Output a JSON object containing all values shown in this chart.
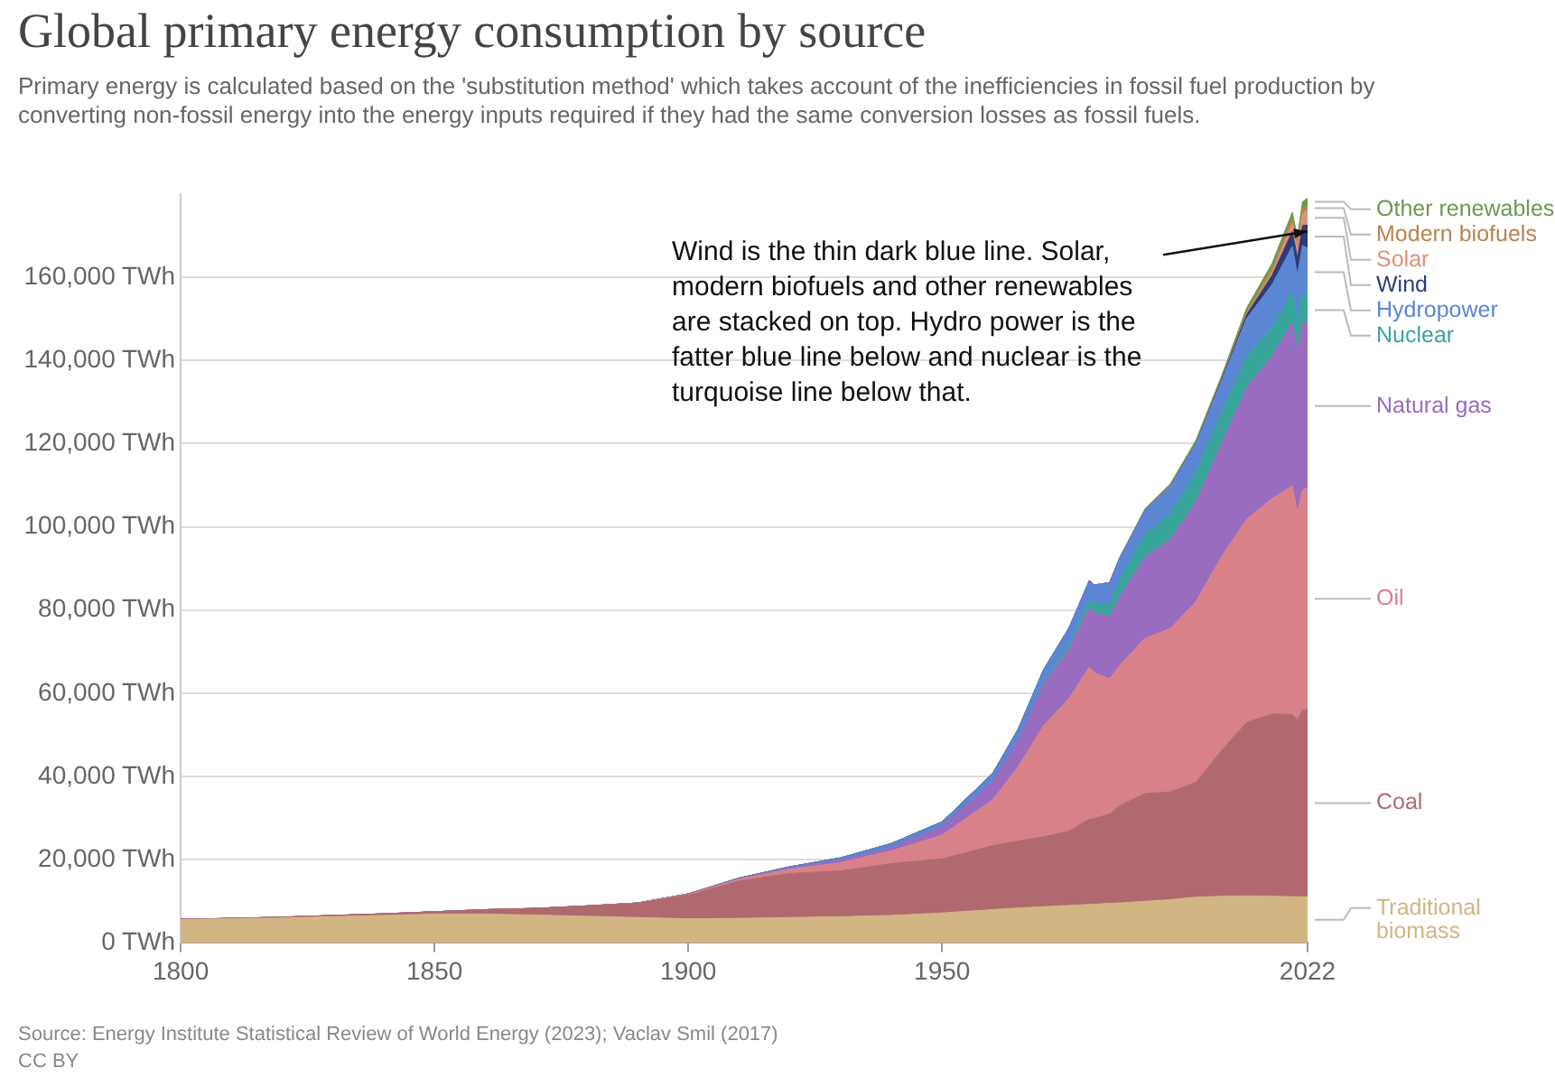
{
  "chart_data": {
    "type": "area",
    "title": "Global primary energy consumption by source",
    "subtitle": "Primary energy is calculated based on the 'substitution method' which takes account of the inefficiencies in fossil fuel production by converting non-fossil energy into the energy inputs required if they had the same conversion losses as fossil fuels.",
    "annotations": [
      {
        "text": "Wind is the thin dark blue line. Solar, modern biofuels and other renewables are stacked on top. Hydro power is the fatter blue line below and nuclear is the turquoise line below that.",
        "x": 2022,
        "y": 171000
      },
      "Source: Energy Institute Statistical Review of World Energy (2023); Vaclav Smil (2017)",
      "CC BY"
    ],
    "stacked": true,
    "grid": "y",
    "legend": false,
    "x": [
      1800,
      1810,
      1820,
      1830,
      1840,
      1850,
      1860,
      1870,
      1880,
      1890,
      1900,
      1910,
      1920,
      1930,
      1940,
      1950,
      1960,
      1965,
      1970,
      1975,
      1979,
      1980,
      1983,
      1985,
      1990,
      1995,
      2000,
      2005,
      2010,
      2015,
      2019,
      2020,
      2021,
      2022
    ],
    "xlim": [
      1800,
      2022
    ],
    "xticks": [
      1800,
      1850,
      1900,
      1950,
      2022
    ],
    "ylim": [
      0,
      180000
    ],
    "yticks": [
      {
        "value": 0,
        "label": "0 TWh"
      },
      {
        "value": 20000,
        "label": "20,000 TWh"
      },
      {
        "value": 40000,
        "label": "40,000 TWh"
      },
      {
        "value": 60000,
        "label": "60,000 TWh"
      },
      {
        "value": 80000,
        "label": "80,000 TWh"
      },
      {
        "value": 100000,
        "label": "100,000 TWh"
      },
      {
        "value": 120000,
        "label": "120,000 TWh"
      },
      {
        "value": 140000,
        "label": "140,000 TWh"
      },
      {
        "value": 160000,
        "label": "160,000 TWh"
      }
    ],
    "series": [
      {
        "name": "Traditional biomass",
        "color": "#d2b583",
        "values": [
          5600,
          5800,
          6000,
          6300,
          6600,
          6900,
          6900,
          6700,
          6400,
          6100,
          5800,
          5900,
          6100,
          6300,
          6600,
          7200,
          8000,
          8400,
          8700,
          9000,
          9250,
          9300,
          9500,
          9600,
          10000,
          10400,
          11000,
          11200,
          11300,
          11200,
          11100,
          11100,
          11100,
          11100
        ]
      },
      {
        "name": "Coal",
        "color": "#b0696f",
        "values": [
          100,
          100,
          200,
          300,
          400,
          600,
          1100,
          1600,
          2500,
          3400,
          5700,
          9000,
          10600,
          11000,
          12500,
          13000,
          15400,
          16100,
          16800,
          17900,
          20500,
          20600,
          21500,
          23400,
          25900,
          25900,
          27600,
          35000,
          41700,
          43800,
          43800,
          42500,
          44800,
          45000
        ]
      },
      {
        "name": "Oil",
        "color": "#d98189",
        "values": [
          0,
          0,
          0,
          0,
          0,
          0,
          0,
          0,
          0,
          100,
          200,
          400,
          1000,
          2000,
          3000,
          5700,
          11000,
          17900,
          26700,
          31800,
          36500,
          35000,
          32500,
          33700,
          37300,
          39300,
          43400,
          46500,
          48800,
          51800,
          54900,
          50000,
          52900,
          53200
        ]
      },
      {
        "name": "Natural gas",
        "color": "#9a6cbf",
        "values": [
          0,
          0,
          0,
          0,
          0,
          0,
          0,
          0,
          0,
          0,
          100,
          200,
          300,
          600,
          900,
          2100,
          4500,
          6300,
          10000,
          12000,
          14300,
          14400,
          15000,
          16600,
          19600,
          21400,
          24000,
          27200,
          31700,
          34200,
          39300,
          38600,
          40400,
          39400
        ]
      },
      {
        "name": "Nuclear",
        "color": "#38a59b",
        "values": [
          0,
          0,
          0,
          0,
          0,
          0,
          0,
          0,
          0,
          0,
          0,
          0,
          0,
          0,
          0,
          0,
          0,
          100,
          200,
          1000,
          1900,
          2000,
          3000,
          4000,
          5400,
          6200,
          6900,
          7300,
          7300,
          6900,
          7300,
          7000,
          7200,
          6700
        ]
      },
      {
        "name": "Hydropower",
        "color": "#5a86d4",
        "values": [
          0,
          0,
          0,
          0,
          0,
          0,
          0,
          0,
          0,
          0,
          0,
          100,
          300,
          550,
          900,
          1100,
          1900,
          2600,
          3300,
          4000,
          4600,
          4700,
          5100,
          5300,
          5800,
          6700,
          7100,
          7700,
          9300,
          10300,
          11000,
          11300,
          11200,
          11600
        ]
      },
      {
        "name": "Wind",
        "color": "#2c3d75",
        "values": [
          0,
          0,
          0,
          0,
          0,
          0,
          0,
          0,
          0,
          0,
          0,
          0,
          0,
          0,
          0,
          0,
          0,
          0,
          0,
          0,
          0,
          0,
          0,
          0,
          0,
          0,
          100,
          300,
          900,
          2200,
          3600,
          4100,
          4800,
          5500
        ]
      },
      {
        "name": "Solar",
        "color": "#e0917a",
        "values": [
          0,
          0,
          0,
          0,
          0,
          0,
          0,
          0,
          0,
          0,
          0,
          0,
          0,
          0,
          0,
          0,
          0,
          0,
          0,
          0,
          0,
          0,
          0,
          0,
          0,
          0,
          0,
          0,
          100,
          700,
          1900,
          2300,
          2800,
          3500
        ]
      },
      {
        "name": "Modern biofuels",
        "color": "#b98150",
        "values": [
          0,
          0,
          0,
          0,
          0,
          0,
          0,
          0,
          0,
          0,
          0,
          0,
          0,
          0,
          0,
          0,
          0,
          0,
          0,
          0,
          0,
          0,
          0,
          0,
          100,
          100,
          100,
          200,
          600,
          900,
          1100,
          1000,
          1100,
          1200
        ]
      },
      {
        "name": "Other renewables",
        "color": "#6c9a4c",
        "values": [
          0,
          0,
          0,
          0,
          0,
          0,
          0,
          0,
          0,
          0,
          0,
          0,
          0,
          0,
          0,
          0,
          0,
          0,
          0,
          0,
          0,
          0,
          0,
          0,
          300,
          400,
          600,
          700,
          900,
          1300,
          1600,
          1700,
          1800,
          1800
        ]
      }
    ]
  }
}
